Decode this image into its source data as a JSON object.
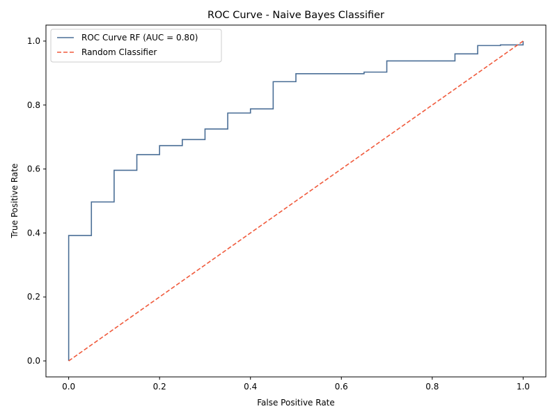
{
  "chart_data": {
    "type": "line",
    "title": "ROC Curve - Naive Bayes Classifier",
    "xlabel": "False Positive Rate",
    "ylabel": "True Positive Rate",
    "xlim": [
      -0.05,
      1.05
    ],
    "ylim": [
      -0.05,
      1.05
    ],
    "xticks": [
      "0.0",
      "0.2",
      "0.4",
      "0.6",
      "0.8",
      "1.0"
    ],
    "yticks": [
      "0.0",
      "0.2",
      "0.4",
      "0.6",
      "0.8",
      "1.0"
    ],
    "grid": false,
    "legend_position": "top-left",
    "series": [
      {
        "name": "ROC Curve RF (AUC = 0.80)",
        "color": "#4a6e96",
        "style": "solid",
        "x": [
          0.0,
          0.0,
          0.05,
          0.05,
          0.1,
          0.1,
          0.15,
          0.15,
          0.2,
          0.2,
          0.25,
          0.25,
          0.3,
          0.3,
          0.35,
          0.35,
          0.4,
          0.4,
          0.45,
          0.45,
          0.5,
          0.5,
          0.65,
          0.65,
          0.7,
          0.7,
          0.85,
          0.85,
          0.9,
          0.9,
          0.95,
          0.95,
          1.0,
          1.0
        ],
        "y": [
          0.0,
          0.392,
          0.392,
          0.497,
          0.497,
          0.596,
          0.596,
          0.645,
          0.645,
          0.673,
          0.673,
          0.692,
          0.692,
          0.725,
          0.725,
          0.775,
          0.775,
          0.788,
          0.788,
          0.873,
          0.873,
          0.898,
          0.898,
          0.903,
          0.903,
          0.938,
          0.938,
          0.96,
          0.96,
          0.986,
          0.986,
          0.988,
          0.988,
          1.0
        ]
      },
      {
        "name": "Random Classifier",
        "color": "#f05a3c",
        "style": "dashed",
        "x": [
          0.0,
          1.0
        ],
        "y": [
          0.0,
          1.0
        ]
      }
    ]
  }
}
